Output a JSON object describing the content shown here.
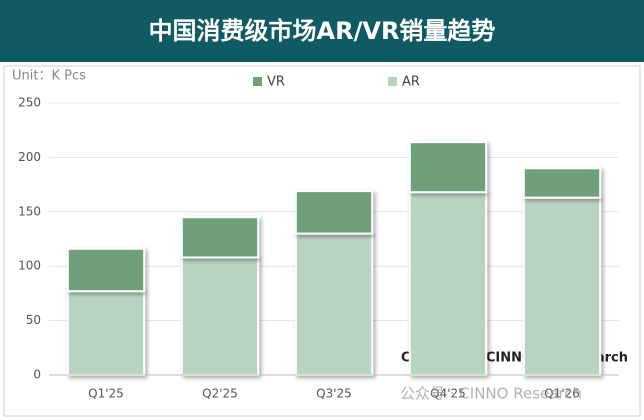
{
  "chart_data": {
    "type": "stacked_bar",
    "title": "中国消费级市场AR/VR销量趋势",
    "unit_label": "Unit：K Pcs",
    "categories": [
      "Q1'25",
      "Q2'25",
      "Q3'25",
      "Q4'25",
      "Q1'26"
    ],
    "series": [
      {
        "name": "AR",
        "color": "#b9d3c2",
        "values": [
          77,
          108,
          130,
          168,
          163
        ]
      },
      {
        "name": "VR",
        "color": "#6fa07a",
        "values": [
          39,
          37,
          39,
          46,
          27
        ]
      }
    ],
    "ylim": [
      0,
      250
    ],
    "yticks": [
      0,
      50,
      100,
      150,
      200,
      250
    ],
    "grid": true,
    "annotation": "Copyright©CINNO • XResearch",
    "watermark": "公众号 · CINNO Research"
  }
}
